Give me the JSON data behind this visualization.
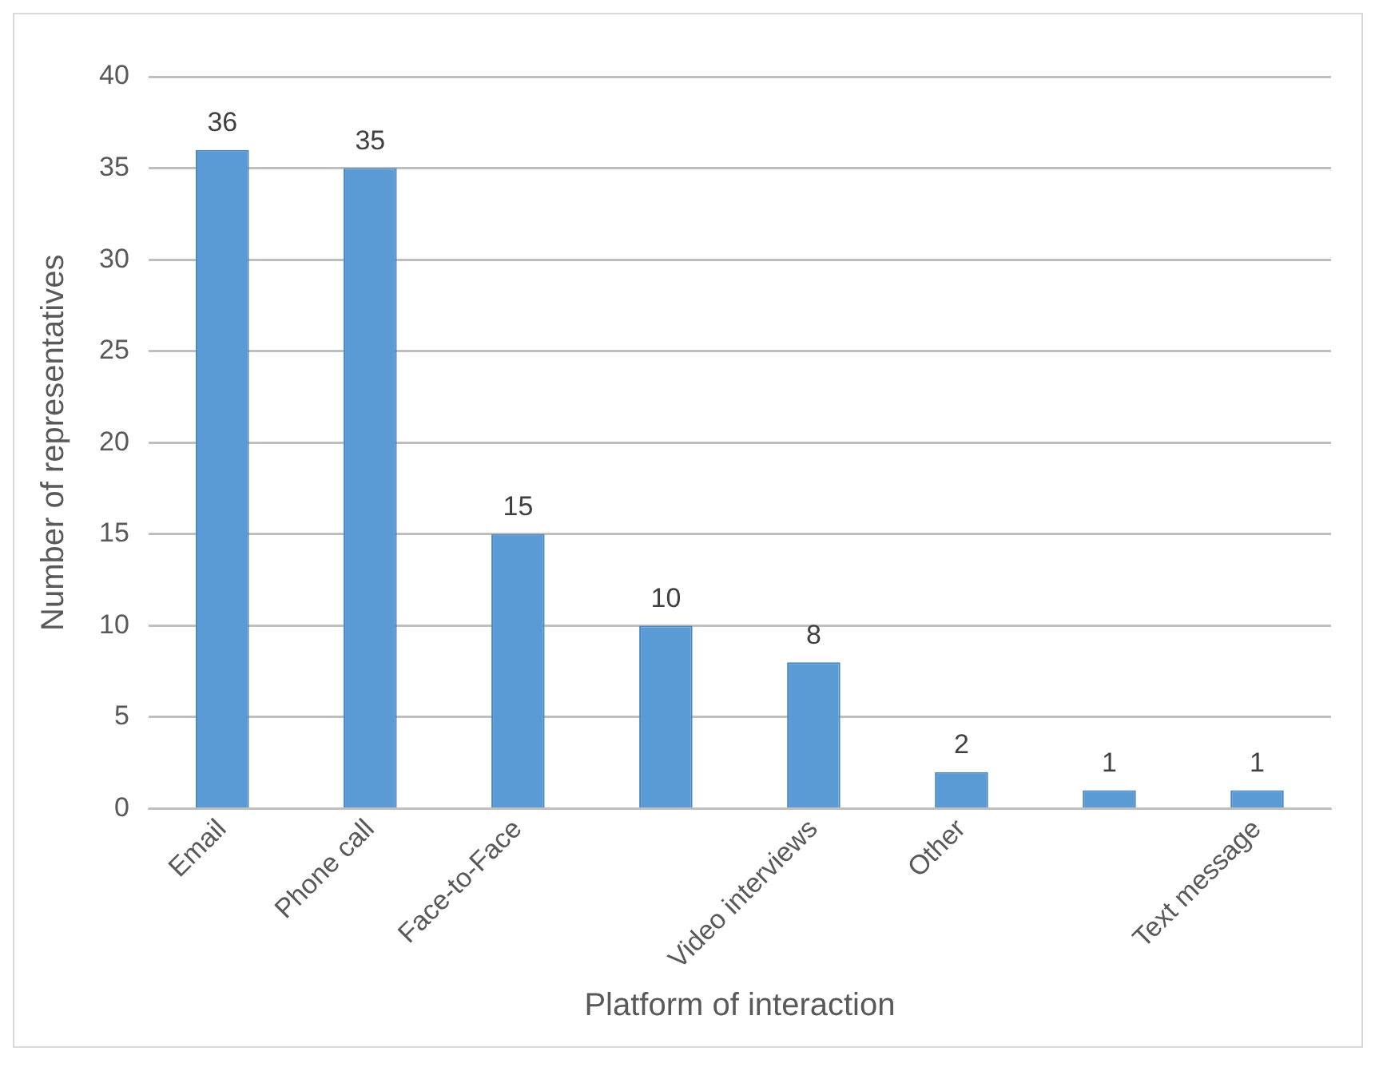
{
  "chart_data": {
    "type": "bar",
    "xlabel": "Platform of interaction",
    "ylabel": "Number of representatives",
    "categories": [
      "Email",
      "Phone call",
      "Face-to-Face",
      null,
      "Video interviews",
      "Other",
      null,
      "Text message"
    ],
    "values": [
      36,
      35,
      15,
      10,
      8,
      2,
      1,
      1
    ],
    "color": "#5b9bd5",
    "ylim": [
      0,
      40
    ],
    "yticks": [
      0,
      5,
      10,
      15,
      20,
      25,
      30,
      35,
      40
    ],
    "grid": "y",
    "legend": false,
    "data_labels": true
  }
}
